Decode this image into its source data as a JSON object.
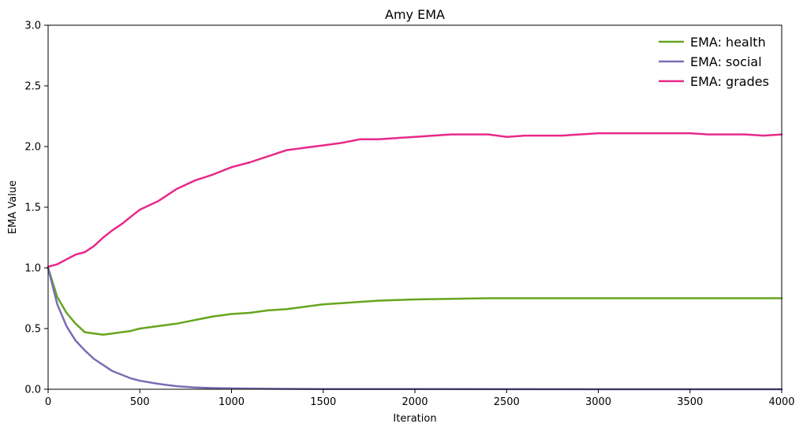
{
  "chart_data": {
    "type": "line",
    "title": "Amy EMA",
    "xlabel": "Iteration",
    "ylabel": "EMA Value",
    "xlim": [
      0,
      4000
    ],
    "ylim": [
      0,
      3.0
    ],
    "xticks": [
      0,
      500,
      1000,
      1500,
      2000,
      2500,
      3000,
      3500,
      4000
    ],
    "xtick_labels": [
      "0",
      "500",
      "1000",
      "1500",
      "2000",
      "2500",
      "3000",
      "3500",
      "4000"
    ],
    "yticks": [
      0,
      0.5,
      1.0,
      1.5,
      2.0,
      2.5,
      3.0
    ],
    "ytick_labels": [
      "0.0",
      "0.5",
      "1.0",
      "1.5",
      "2.0",
      "2.5",
      "3.0"
    ],
    "grid": false,
    "legend_position": "top-right",
    "series": [
      {
        "name": "EMA: health",
        "color": "#66a61e",
        "x": [
          0,
          50,
          100,
          150,
          200,
          250,
          300,
          350,
          400,
          450,
          500,
          600,
          700,
          800,
          900,
          1000,
          1100,
          1200,
          1300,
          1400,
          1500,
          1600,
          1700,
          1800,
          1900,
          2000,
          2200,
          2400,
          2600,
          2800,
          3000,
          3200,
          3400,
          3600,
          3800,
          4000
        ],
        "y": [
          1.0,
          0.76,
          0.63,
          0.54,
          0.47,
          0.46,
          0.45,
          0.46,
          0.47,
          0.48,
          0.5,
          0.52,
          0.54,
          0.57,
          0.6,
          0.62,
          0.63,
          0.65,
          0.66,
          0.68,
          0.7,
          0.71,
          0.72,
          0.73,
          0.735,
          0.74,
          0.745,
          0.75,
          0.75,
          0.75,
          0.75,
          0.75,
          0.75,
          0.75,
          0.75,
          0.75
        ]
      },
      {
        "name": "EMA: social",
        "color": "#7570b3",
        "x": [
          0,
          50,
          100,
          150,
          200,
          250,
          300,
          350,
          400,
          450,
          500,
          600,
          700,
          800,
          900,
          1000,
          1200,
          1500,
          2000,
          3000,
          4000
        ],
        "y": [
          1.0,
          0.7,
          0.52,
          0.4,
          0.32,
          0.25,
          0.2,
          0.15,
          0.12,
          0.09,
          0.07,
          0.045,
          0.025,
          0.015,
          0.01,
          0.007,
          0.004,
          0.002,
          0.001,
          0.0,
          0.0
        ]
      },
      {
        "name": "EMA: grades",
        "color": "#e7298a",
        "x": [
          0,
          50,
          100,
          150,
          200,
          250,
          300,
          350,
          400,
          450,
          500,
          600,
          700,
          800,
          900,
          1000,
          1100,
          1200,
          1300,
          1400,
          1500,
          1600,
          1700,
          1800,
          1900,
          2000,
          2100,
          2200,
          2300,
          2400,
          2500,
          2600,
          2700,
          2800,
          2900,
          3000,
          3100,
          3200,
          3300,
          3400,
          3500,
          3600,
          3700,
          3800,
          3900,
          4000
        ],
        "y": [
          1.01,
          1.03,
          1.07,
          1.11,
          1.13,
          1.18,
          1.25,
          1.31,
          1.36,
          1.42,
          1.48,
          1.55,
          1.65,
          1.72,
          1.77,
          1.83,
          1.87,
          1.92,
          1.97,
          1.99,
          2.01,
          2.03,
          2.06,
          2.06,
          2.07,
          2.08,
          2.09,
          2.1,
          2.1,
          2.1,
          2.08,
          2.09,
          2.09,
          2.09,
          2.1,
          2.11,
          2.11,
          2.11,
          2.11,
          2.11,
          2.11,
          2.1,
          2.1,
          2.1,
          2.09,
          2.1
        ]
      }
    ]
  }
}
